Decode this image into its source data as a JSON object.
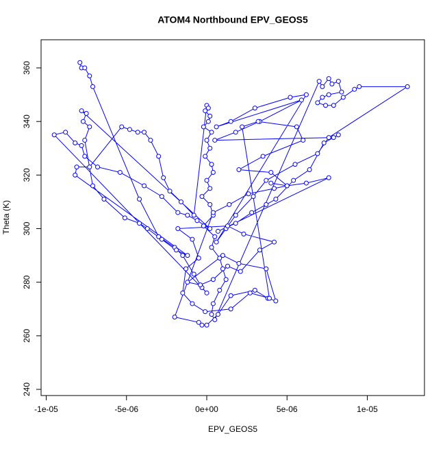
{
  "chart_data": {
    "type": "scatter-line",
    "title": "ATOM4 Northbound EPV_GEOS5",
    "x_label": "EPV_GEOS5",
    "y_label": "Theta (K)",
    "color": "#0000ff",
    "xlim": [
      -1.032e-05,
      1.356e-05
    ],
    "ylim": [
      237.7,
      370.5
    ],
    "xticks": [
      {
        "value": -1e-05,
        "label": "-1e-05"
      },
      {
        "value": -5e-06,
        "label": "-5e-06"
      },
      {
        "value": 0,
        "label": "0e+00"
      },
      {
        "value": 5e-06,
        "label": "5e-06"
      },
      {
        "value": 1e-05,
        "label": "1e-05"
      }
    ],
    "yticks": [
      240,
      260,
      280,
      300,
      320,
      340,
      360
    ],
    "x": [
      -7.9e-06,
      -7.8e-06,
      -7.6e-06,
      -7.3e-06,
      -7.1e-06,
      -4.2e-06,
      -3e-06,
      -2e-06,
      -1.5e-06,
      -8e-07,
      -3e-07,
      0,
      -9.5e-06,
      -8.8e-06,
      -8.2e-06,
      -7.8e-06,
      -7.6e-06,
      -6.8e-06,
      -5.4e-06,
      -3.9e-06,
      -2.8e-06,
      -1.8e-06,
      -1.2e-06,
      -6e-07,
      2e-07,
      -7.8e-06,
      -7.5e-06,
      -7.7e-06,
      -7.3e-06,
      -7.6e-06,
      -7.1e-06,
      -6.4e-06,
      -5.1e-06,
      -4.2e-06,
      -3.7e-06,
      -2.8e-06,
      -1.9e-06,
      -1.2e-06,
      -8.2e-06,
      -8.1e-06,
      -7.3e-06,
      -5.3e-06,
      -4.8e-06,
      -4.3e-06,
      -3.9e-06,
      -3.5e-06,
      -3e-06,
      -2.7e-06,
      -2.3e-06,
      -1.6e-06,
      -8e-07,
      0,
      1e-07,
      -1e-07,
      2e-07,
      1e-07,
      -2e-07,
      3e-07,
      0,
      2e-07,
      -1e-07,
      3e-07,
      4e-07,
      0,
      2e-07,
      -3e-07,
      2e-07,
      4e-07,
      -2e-07,
      5e-07,
      3e-07,
      8e-07,
      1e-06,
      1.2e-06,
      8e-07,
      4e-07,
      3e-07,
      5e-07,
      7e-06,
      7.2e-06,
      7.6e-06,
      7.8e-06,
      8.2e-06,
      8.4e-06,
      7.6e-06,
      7.2e-06,
      6.9e-06,
      7.4e-06,
      7.9e-06,
      8.5e-06,
      9.2e-06,
      9.5e-06,
      1.25e-05,
      7.6e-06,
      6.9e-06,
      5.5e-06,
      3.7e-06,
      2.9e-06,
      1.8e-06,
      1.2e-06,
      6e-07,
      6.2e-06,
      5.2e-06,
      3e-06,
      1.5e-06,
      6e-07,
      5.9e-06,
      3.3e-06,
      1.8e-06,
      5e-07,
      7.9e-06,
      8.2e-06,
      7.3e-06,
      6.4e-06,
      5.4e-06,
      4.3e-06,
      3.7e-06,
      2.8e-06,
      1.8e-06,
      7e-07,
      7.6e-06,
      6.2e-06,
      5e-06,
      4.2e-06,
      2.6e-06,
      1.4e-06,
      4e-07,
      -2e-06,
      -5e-07,
      -3e-07,
      0,
      7e-07,
      1.5e-06,
      3e-06,
      3.8e-06,
      4.3e-06,
      3.7e-06,
      2e-06,
      1e-06,
      -1.2e-06,
      -4e-07,
      4e-07,
      1.3e-06,
      2.1e-06,
      3.3e-06,
      4.2e-06,
      2.3e-06,
      1.3e-06,
      -1.8e-06,
      -9e-07,
      -5e-07,
      -1.3e-06,
      -1.5e-06,
      -9e-07,
      -1e-07,
      1.5e-06,
      2.7e-06,
      3.9e-06,
      2.2e-06,
      3.2e-06,
      5.6e-06,
      6e-06,
      3.5e-06,
      2e-06,
      4e-06,
      5e-06,
      4e-06
    ],
    "values": [
      362,
      360,
      360,
      357,
      353,
      311,
      297,
      293,
      290,
      283,
      278,
      276,
      335,
      336,
      332,
      331,
      327,
      323,
      321,
      316,
      312,
      306,
      305,
      303,
      300,
      344,
      343,
      340,
      338,
      333,
      316,
      311,
      304,
      302,
      300,
      296,
      292,
      290,
      320,
      323,
      323,
      338,
      337,
      336,
      336,
      333,
      327,
      319,
      314,
      310,
      305,
      346,
      345,
      344,
      342,
      340,
      338,
      336,
      333,
      330,
      327,
      324,
      321,
      318,
      315,
      312,
      309,
      305,
      301,
      297,
      293,
      289,
      285,
      281,
      277,
      272,
      268,
      266,
      355,
      353,
      356,
      354,
      355,
      351,
      350,
      349,
      347,
      346,
      346,
      349,
      352,
      353,
      353,
      334,
      328,
      324,
      318,
      312,
      305,
      300,
      295,
      350,
      349,
      345,
      340,
      338,
      348,
      340,
      336,
      333,
      334,
      335,
      332,
      322,
      318,
      311,
      309,
      306,
      302,
      299,
      319,
      317,
      316,
      315,
      313,
      309,
      306,
      267,
      265,
      264,
      264,
      268,
      275,
      277,
      274,
      273,
      285,
      287,
      290,
      280,
      279,
      281,
      286,
      284,
      292,
      295,
      298,
      301,
      300,
      296,
      289,
      285,
      276,
      272,
      269,
      270,
      276,
      274,
      338,
      340,
      338,
      333,
      327,
      322,
      321,
      316,
      317
    ]
  }
}
